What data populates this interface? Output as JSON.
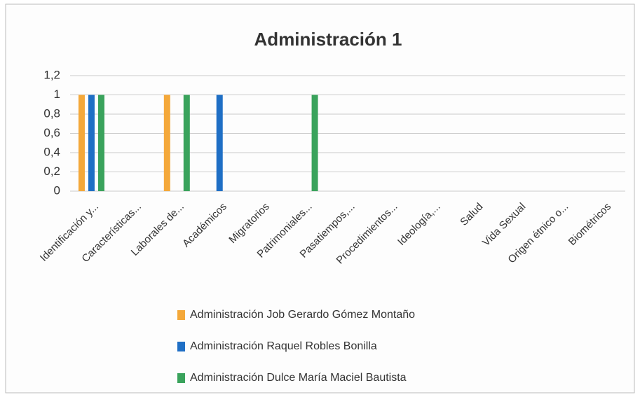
{
  "chart_data": {
    "type": "bar",
    "title": "Administración 1",
    "categories": [
      "Identificación y...",
      "Características...",
      "Laborales de...",
      "Académicos",
      "Migratorios",
      "Patrimoniales...",
      "Pasatiempos,...",
      "Procedimientos...",
      "Ideología,...",
      "Salud",
      "Vida Sexual",
      "Origen étnico o...",
      "Biométricos"
    ],
    "series": [
      {
        "name": "Administración Job Gerardo Gómez Montaño",
        "color": "#f4a83a",
        "values": [
          1,
          0,
          1,
          0,
          0,
          0,
          0,
          0,
          0,
          0,
          0,
          0,
          0
        ]
      },
      {
        "name": "Administración Raquel Robles Bonilla",
        "color": "#1f6fc5",
        "values": [
          1,
          0,
          0,
          1,
          0,
          0,
          0,
          0,
          0,
          0,
          0,
          0,
          0
        ]
      },
      {
        "name": "Administración Dulce María Maciel Bautista",
        "color": "#3aa35c",
        "values": [
          1,
          0,
          1,
          0,
          0,
          1,
          0,
          0,
          0,
          0,
          0,
          0,
          0
        ]
      }
    ],
    "ylim": [
      0,
      1.2
    ],
    "yticks": [
      0,
      {
        "value": 0.2,
        "label": "0,2"
      },
      {
        "value": 0.4,
        "label": "0,4"
      },
      {
        "value": 0.6,
        "label": "0,6"
      },
      {
        "value": 0.8,
        "label": "0,8"
      },
      1,
      {
        "value": 1.2,
        "label": "1,2"
      }
    ],
    "grid": true,
    "legend": "bottom"
  }
}
